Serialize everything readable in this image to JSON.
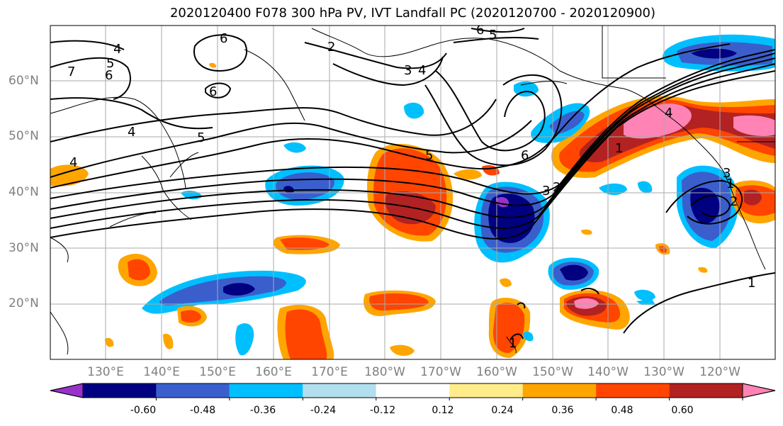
{
  "title": "2020120400 F078 300 hPa PV, IVT Landfall PC (2020120700 - 2020120900)",
  "lat_labels": [
    "60°N",
    "50°N",
    "40°N",
    "30°N",
    "20°N"
  ],
  "lon_labels": [
    "130°E",
    "140°E",
    "150°E",
    "160°E",
    "170°E",
    "180°W",
    "170°W",
    "160°W",
    "150°W",
    "140°W",
    "130°W",
    "120°W"
  ],
  "colorbar": {
    "colors": [
      "#9932cc",
      "#000080",
      "#3a5fcd",
      "#00bfff",
      "#b2dfee",
      "#ffffff",
      "#ffec8b",
      "#ffa500",
      "#ff4500",
      "#b22222",
      "#ff83b4"
    ],
    "tick_labels": [
      "-0.60",
      "-0.48",
      "-0.36",
      "-0.24",
      "-0.12",
      "0.12",
      "0.24",
      "0.36",
      "0.48",
      "0.60"
    ]
  },
  "contour_labels": [
    "7",
    "6",
    "5",
    "4",
    "6",
    "6",
    "5",
    "2",
    "3",
    "4",
    "6",
    "5",
    "5",
    "6",
    "4",
    "3",
    "2",
    "1",
    "1",
    "4",
    "3",
    "1",
    "2",
    "1",
    "4"
  ]
}
